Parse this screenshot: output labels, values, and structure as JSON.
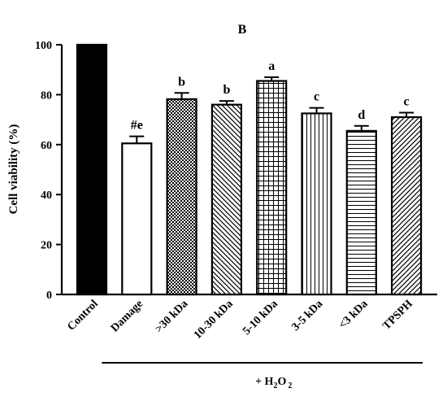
{
  "chart_data": {
    "type": "bar",
    "title": "B",
    "ylabel": "Cell viability (%)",
    "xlabel": "",
    "ylim": [
      0,
      100
    ],
    "yticks": [
      0,
      20,
      40,
      60,
      80,
      100
    ],
    "categories": [
      "Control",
      "Damage",
      ">30 kDa",
      "10-30 kDa",
      "5-10 kDa",
      "3-5 kDa",
      "<3 kDa",
      "TPSPH"
    ],
    "values": [
      100,
      60.5,
      78.2,
      76.0,
      85.5,
      72.5,
      65.5,
      71.0
    ],
    "errors": [
      0,
      2.8,
      2.5,
      1.5,
      1.5,
      2.2,
      2.0,
      1.8
    ],
    "significance_labels": [
      "",
      "#e",
      "b",
      "b",
      "a",
      "c",
      "d",
      "c"
    ],
    "fill_patterns": [
      "solid",
      "none",
      "checker",
      "diag-back",
      "grid",
      "vertical",
      "horizontal",
      "diag-fwd"
    ],
    "treatment_bracket": {
      "prefix": "+ H",
      "subscript1": "2",
      "middle": "O",
      "subscript2": "2",
      "from_category": 1,
      "to_category": 7
    },
    "colors": {
      "bar_stroke": "#000000",
      "control_fill": "#000000",
      "background": "#ffffff"
    }
  }
}
